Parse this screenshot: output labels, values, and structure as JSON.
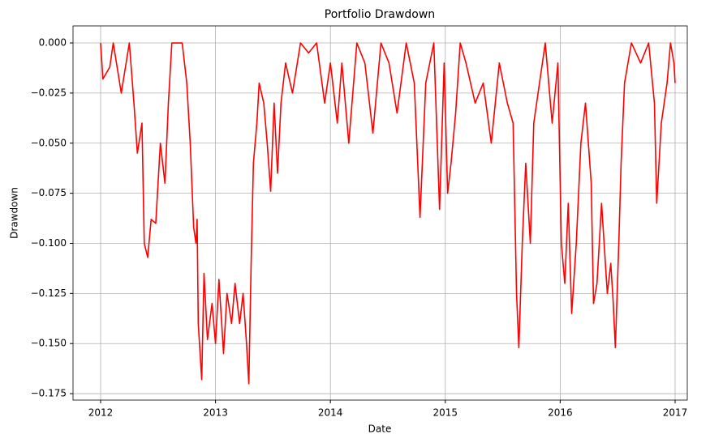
{
  "chart_data": {
    "type": "line",
    "title": "Portfolio Drawdown",
    "x_label": "Date",
    "y_label": "Drawdown",
    "x": [
      2012.0,
      2012.02,
      2012.08,
      2012.11,
      2012.18,
      2012.25,
      2012.29,
      2012.32,
      2012.36,
      2012.38,
      2012.41,
      2012.44,
      2012.48,
      2012.52,
      2012.56,
      2012.59,
      2012.62,
      2012.71,
      2012.75,
      2012.78,
      2012.81,
      2012.83,
      2012.84,
      2012.85,
      2012.88,
      2012.9,
      2012.93,
      2012.97,
      2013.0,
      2013.03,
      2013.07,
      2013.1,
      2013.14,
      2013.17,
      2013.21,
      2013.24,
      2013.27,
      2013.29,
      2013.31,
      2013.33,
      2013.36,
      2013.38,
      2013.42,
      2013.45,
      2013.48,
      2013.51,
      2013.54,
      2013.57,
      2013.61,
      2013.67,
      2013.74,
      2013.81,
      2013.88,
      2013.95,
      2014.0,
      2014.06,
      2014.1,
      2014.16,
      2014.23,
      2014.3,
      2014.37,
      2014.44,
      2014.51,
      2014.58,
      2014.66,
      2014.73,
      2014.78,
      2014.83,
      2014.9,
      2014.95,
      2014.99,
      2015.02,
      2015.05,
      2015.09,
      2015.13,
      2015.18,
      2015.26,
      2015.33,
      2015.4,
      2015.47,
      2015.54,
      2015.59,
      2015.62,
      2015.64,
      2015.67,
      2015.7,
      2015.74,
      2015.77,
      2015.82,
      2015.87,
      2015.93,
      2015.98,
      2016.01,
      2016.04,
      2016.07,
      2016.1,
      2016.14,
      2016.18,
      2016.22,
      2016.27,
      2016.29,
      2016.32,
      2016.36,
      2016.41,
      2016.44,
      2016.46,
      2016.48,
      2016.51,
      2016.53,
      2016.56,
      2016.62,
      2016.7,
      2016.77,
      2016.82,
      2016.84,
      2016.88,
      2016.93,
      2016.96,
      2016.99,
      2017.0
    ],
    "series": [
      {
        "name": "Drawdown",
        "color": "#ff0000",
        "values": [
          0,
          -0.018,
          -0.012,
          0,
          -0.025,
          0,
          -0.03,
          -0.055,
          -0.04,
          -0.1,
          -0.107,
          -0.088,
          -0.09,
          -0.05,
          -0.07,
          -0.03,
          0,
          0,
          -0.02,
          -0.05,
          -0.092,
          -0.1,
          -0.088,
          -0.14,
          -0.168,
          -0.115,
          -0.148,
          -0.13,
          -0.15,
          -0.118,
          -0.155,
          -0.125,
          -0.14,
          -0.12,
          -0.14,
          -0.125,
          -0.15,
          -0.17,
          -0.11,
          -0.06,
          -0.04,
          -0.02,
          -0.03,
          -0.05,
          -0.074,
          -0.03,
          -0.065,
          -0.03,
          -0.01,
          -0.025,
          0,
          -0.005,
          0,
          -0.03,
          -0.01,
          -0.04,
          -0.01,
          -0.05,
          0,
          -0.01,
          -0.045,
          0,
          -0.01,
          -0.035,
          0,
          -0.02,
          -0.087,
          -0.02,
          0,
          -0.083,
          -0.01,
          -0.075,
          -0.06,
          -0.035,
          0,
          -0.01,
          -0.03,
          -0.02,
          -0.05,
          -0.01,
          -0.03,
          -0.04,
          -0.125,
          -0.152,
          -0.1,
          -0.06,
          -0.1,
          -0.04,
          -0.02,
          0,
          -0.04,
          -0.01,
          -0.1,
          -0.12,
          -0.08,
          -0.135,
          -0.1,
          -0.05,
          -0.03,
          -0.07,
          -0.13,
          -0.12,
          -0.08,
          -0.125,
          -0.11,
          -0.128,
          -0.152,
          -0.1,
          -0.06,
          -0.02,
          0,
          -0.01,
          0,
          -0.03,
          -0.08,
          -0.04,
          -0.02,
          0,
          -0.01,
          -0.02
        ]
      }
    ],
    "xlim": [
      2011.76,
      2017.106
    ],
    "xticks": [
      2012,
      2013,
      2014,
      2015,
      2016,
      2017
    ],
    "ylim": [
      -0.1782,
      0.0085
    ],
    "yticks": [
      {
        "value": 0,
        "label": "0.000"
      },
      {
        "value": -0.025,
        "label": "−0.025"
      },
      {
        "value": -0.05,
        "label": "−0.050"
      },
      {
        "value": -0.075,
        "label": "−0.075"
      },
      {
        "value": -0.1,
        "label": "−0.100"
      },
      {
        "value": -0.125,
        "label": "−0.125"
      },
      {
        "value": -0.15,
        "label": "−0.150"
      },
      {
        "value": -0.175,
        "label": "−0.175"
      }
    ],
    "grid": true
  }
}
